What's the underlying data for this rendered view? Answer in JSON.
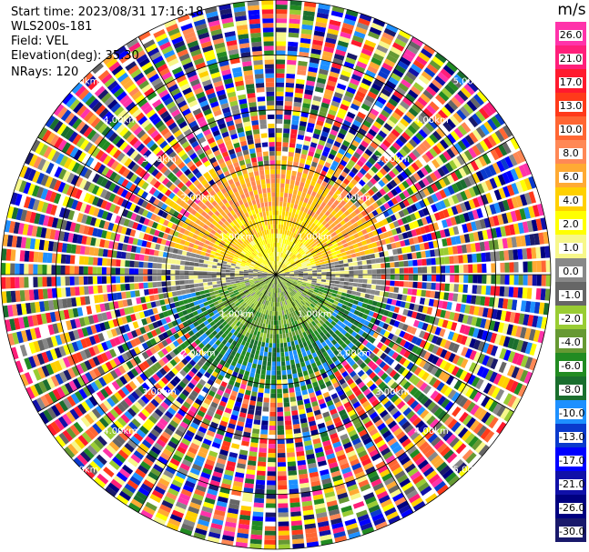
{
  "meta": {
    "start_time": "Start time: 2023/08/31 17:16:18",
    "instrument": "WLS200s-181",
    "field": "Field: VEL",
    "elevation": "Elevation(deg): 35.30",
    "nrays": "NRays: 120"
  },
  "colorbar": {
    "unit": "m/s",
    "bands": [
      {
        "label": "26.0",
        "color": "#ff33aa"
      },
      {
        "label": "21.0",
        "color": "#ff1f7a"
      },
      {
        "label": "17.0",
        "color": "#ff1a2e"
      },
      {
        "label": "13.0",
        "color": "#ff3a1a"
      },
      {
        "label": "10.0",
        "color": "#ff6633"
      },
      {
        "label": "8.0",
        "color": "#ff8855"
      },
      {
        "label": "6.0",
        "color": "#ffaa33"
      },
      {
        "label": "4.0",
        "color": "#ffd000"
      },
      {
        "label": "2.0",
        "color": "#ffff00"
      },
      {
        "label": "1.0",
        "color": "#f7f78a"
      },
      {
        "label": "0.0",
        "color": "#888888"
      },
      {
        "label": "-1.0",
        "color": "#666666"
      },
      {
        "label": "-2.0",
        "color": "#99cc33"
      },
      {
        "label": "-4.0",
        "color": "#669933"
      },
      {
        "label": "-6.0",
        "color": "#228b22"
      },
      {
        "label": "-8.0",
        "color": "#1a6e2e"
      },
      {
        "label": "-10.0",
        "color": "#1e90ff"
      },
      {
        "label": "-13.0",
        "color": "#0a3acc"
      },
      {
        "label": "-17.0",
        "color": "#0000ff"
      },
      {
        "label": "-21.0",
        "color": "#1010a8"
      },
      {
        "label": "-26.0",
        "color": "#000080"
      },
      {
        "label": "-30.0",
        "color": "#19196b"
      }
    ]
  },
  "chart_data": {
    "type": "heatmap",
    "projection": "polar (PPI scan)",
    "field": "VEL",
    "unit": "m/s",
    "nrays": 120,
    "range_rings_km": [
      1.0,
      2.0,
      3.0,
      4.0,
      5.0
    ],
    "ring_labels": {
      "1.0": "1.00km",
      "2.0": "2.00km",
      "3.0": "3.00km",
      "4.0": "4.00km",
      "5.0": "5.00km"
    },
    "color_scale_range": [
      -30.0,
      26.0
    ],
    "data_extent_km": 5.0,
    "pattern": "near range: positive velocities (yellow/orange) toward north, negative (green/blue) toward south; beyond ~2 km mostly noise across full color range"
  }
}
